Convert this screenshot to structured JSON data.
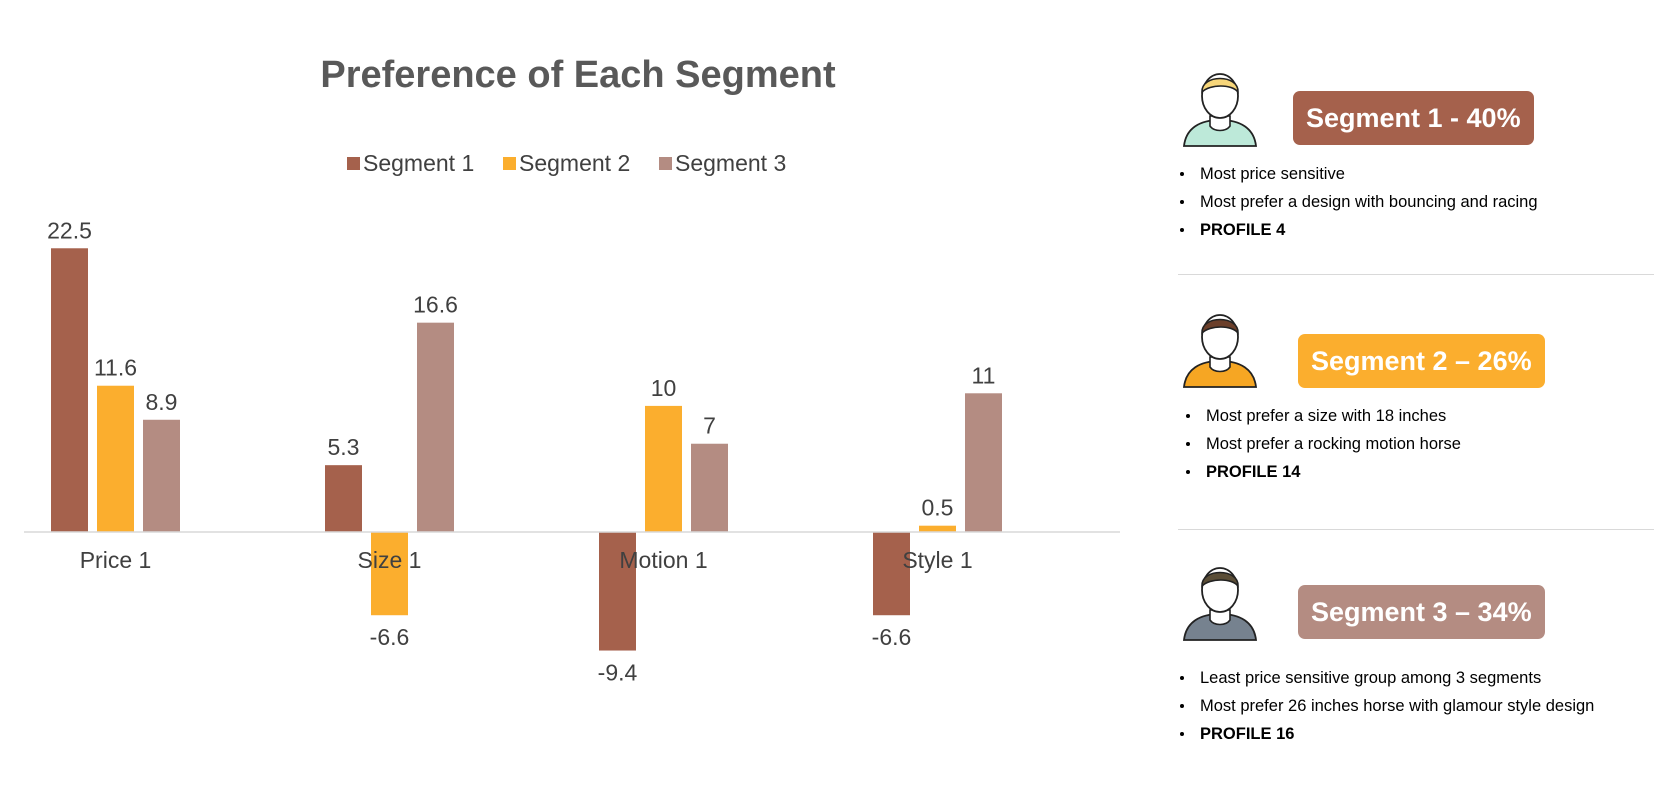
{
  "chart_data": {
    "type": "bar",
    "title": "Preference of Each Segment",
    "categories": [
      "Price 1",
      "Size 1",
      "Motion 1",
      "Style 1"
    ],
    "series": [
      {
        "name": "Segment 1",
        "color": "#A5614C",
        "values": [
          22.5,
          5.3,
          -9.4,
          -6.6
        ]
      },
      {
        "name": "Segment 2",
        "color": "#FBAE2E",
        "values": [
          11.6,
          -6.6,
          10,
          0.5
        ]
      },
      {
        "name": "Segment 3",
        "color": "#B48C82",
        "values": [
          8.9,
          16.6,
          7,
          11
        ]
      }
    ],
    "legend_position": "top",
    "grid": false,
    "xlabel": "",
    "ylabel": ""
  },
  "segments": [
    {
      "badge": "Segment 1 - 40%",
      "color": "#A5614C",
      "avatar": "person-avatar-icon",
      "hair_color": "#F7D67A",
      "shirt_color": "#BDE9D9",
      "bullets": [
        "Most price sensitive",
        "Most prefer a design with bouncing and racing"
      ],
      "profile": "PROFILE 4"
    },
    {
      "badge": "Segment 2 – 26%",
      "color": "#FBAE2E",
      "avatar": "person-avatar-icon",
      "hair_color": "#6B3F2A",
      "shirt_color": "#F6A623",
      "bullets": [
        "Most prefer a size with 18 inches",
        "Most prefer a rocking motion horse"
      ],
      "profile": "PROFILE 14"
    },
    {
      "badge": "Segment 3 – 34%",
      "color": "#B48C82",
      "avatar": "person-avatar-icon",
      "hair_color": "#5B4E37",
      "shirt_color": "#76828F",
      "bullets": [
        "Least price sensitive group among 3 segments",
        "Most prefer 26 inches horse with glamour style design"
      ],
      "profile": "PROFILE 16"
    }
  ]
}
